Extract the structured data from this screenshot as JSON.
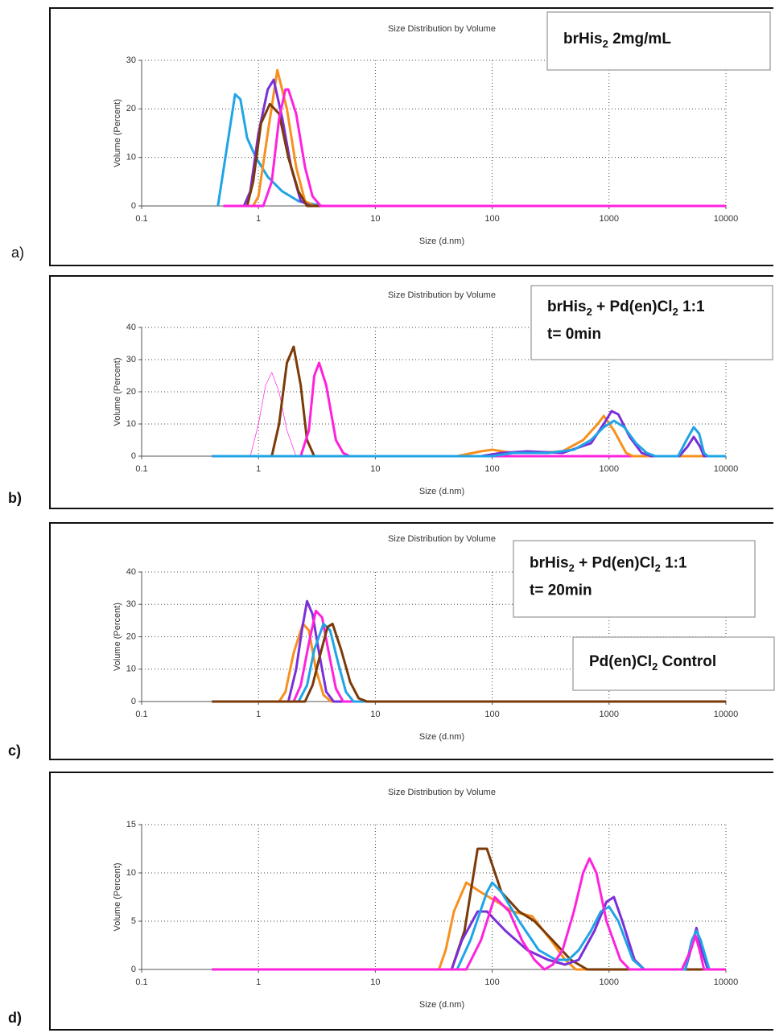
{
  "chart_data": [
    {
      "type": "line",
      "title": "Size Distribution by Volume",
      "x_label": "Size (d.nm)",
      "y_label": "Volume (Percent)",
      "panel_label": "a)",
      "annotation": [
        [
          "brHis",
          "2",
          " 2mg/mL"
        ]
      ],
      "xscale": "log",
      "xlim": [
        0.1,
        10000
      ],
      "xticks": [
        0.1,
        1,
        10,
        100,
        1000,
        10000
      ],
      "ylim": [
        0,
        30
      ],
      "yticks": [
        0,
        10,
        20,
        30
      ],
      "grid": true,
      "series": [
        {
          "color": "#1fa4e6",
          "x": [
            0.45,
            0.63,
            0.7,
            0.8,
            0.95,
            1.2,
            1.6,
            2.2,
            3.5,
            10000
          ],
          "values": [
            0,
            23,
            22,
            14,
            10,
            6,
            3,
            1,
            0,
            0
          ]
        },
        {
          "color": "#f7901e",
          "x": [
            0.5,
            0.9,
            1.0,
            1.2,
            1.45,
            1.75,
            2.1,
            2.5,
            3,
            10000
          ],
          "values": [
            0,
            0,
            2,
            15,
            28,
            20,
            8,
            1,
            0,
            0
          ]
        },
        {
          "color": "#7a2fd8",
          "x": [
            0.5,
            0.75,
            0.85,
            1.0,
            1.2,
            1.35,
            1.6,
            1.9,
            2.3,
            2.8,
            10000
          ],
          "values": [
            0,
            0,
            3,
            15,
            24,
            26,
            18,
            8,
            1,
            0,
            0
          ]
        },
        {
          "color": "#7b3a08",
          "x": [
            0.5,
            0.8,
            0.9,
            1.05,
            1.25,
            1.5,
            1.8,
            2.2,
            2.6,
            10000
          ],
          "values": [
            0,
            0,
            5,
            17,
            21,
            19,
            10,
            3,
            0,
            0
          ]
        },
        {
          "color": "#ff22dd",
          "x": [
            0.5,
            1.1,
            1.3,
            1.5,
            1.7,
            1.8,
            2.1,
            2.5,
            2.9,
            3.4,
            10000
          ],
          "values": [
            0,
            0,
            5,
            18,
            24,
            24,
            19,
            8,
            2,
            0,
            0
          ]
        }
      ]
    },
    {
      "type": "line",
      "title": "Size Distribution by Volume",
      "x_label": "Size (d.nm)",
      "y_label": "Volume (Percent)",
      "panel_label": "b)",
      "annotation": [
        [
          "brHis",
          "2",
          " + Pd(en)Cl",
          "2",
          "  1:1"
        ],
        [
          "t= 0min"
        ]
      ],
      "xscale": "log",
      "xlim": [
        0.1,
        10000
      ],
      "xticks": [
        0.1,
        1,
        10,
        100,
        1000,
        10000
      ],
      "ylim": [
        0,
        40
      ],
      "yticks": [
        0,
        10,
        20,
        30,
        40
      ],
      "grid": true,
      "series": [
        {
          "color": "#ff22dd",
          "width": 0.7,
          "x": [
            0.5,
            0.85,
            1.0,
            1.15,
            1.3,
            1.5,
            1.75,
            2.1,
            10000
          ],
          "values": [
            0,
            0,
            10,
            22,
            26,
            20,
            8,
            0,
            0
          ]
        },
        {
          "color": "#7b3a08",
          "x": [
            0.4,
            1.3,
            1.5,
            1.75,
            2.0,
            2.3,
            2.6,
            3.0,
            10000
          ],
          "values": [
            0,
            0,
            10,
            29,
            34,
            22,
            5,
            0,
            0
          ]
        },
        {
          "color": "#ff22dd",
          "x": [
            0.4,
            2.3,
            2.7,
            3.0,
            3.3,
            3.8,
            4.6,
            5.3,
            6,
            10000
          ],
          "values": [
            0,
            0,
            8,
            25,
            29,
            22,
            5,
            1,
            0,
            0
          ]
        },
        {
          "color": "#f7901e",
          "x": [
            0.4,
            50,
            80,
            100,
            150,
            250,
            400,
            600,
            800,
            900,
            1100,
            1400,
            1600,
            10000
          ],
          "values": [
            0,
            0,
            1.5,
            2,
            1,
            1,
            1.5,
            5,
            10,
            12.5,
            8,
            1,
            0,
            0
          ]
        },
        {
          "color": "#7a2fd8",
          "x": [
            0.4,
            80,
            120,
            200,
            400,
            700,
            900,
            1050,
            1200,
            1500,
            1900,
            2300,
            4000,
            4700,
            5300,
            6000,
            6500,
            10000
          ],
          "values": [
            0,
            0,
            1,
            1.5,
            1,
            4,
            10,
            14,
            13,
            6,
            1,
            0,
            0,
            3,
            6,
            3,
            0,
            0
          ]
        },
        {
          "color": "#1fa4e6",
          "x": [
            0.4,
            100,
            150,
            300,
            500,
            700,
            900,
            1100,
            1350,
            1700,
            2100,
            2500,
            3900,
            4600,
            5300,
            5900,
            6500,
            7000,
            10000
          ],
          "values": [
            0,
            0,
            1,
            1,
            2,
            5,
            9,
            11,
            9,
            4,
            1,
            0,
            0,
            5,
            9,
            7,
            1,
            0,
            0
          ]
        }
      ]
    },
    {
      "type": "line",
      "title": "Size Distribution by Volume",
      "x_label": "Size (d.nm)",
      "y_label": "Volume (Percent)",
      "panel_label": "c)",
      "annotation": [
        [
          "brHis",
          "2",
          " + Pd(en)Cl",
          "2",
          "    1:1"
        ],
        [
          "t= 20min"
        ]
      ],
      "xscale": "log",
      "xlim": [
        0.1,
        10000
      ],
      "xticks": [
        0.1,
        1,
        10,
        100,
        1000,
        10000
      ],
      "ylim": [
        0,
        40
      ],
      "yticks": [
        0,
        10,
        20,
        30,
        40
      ],
      "grid": true,
      "series": [
        {
          "color": "#f7901e",
          "x": [
            0.4,
            1.5,
            1.7,
            2.0,
            2.4,
            2.7,
            3.1,
            3.6,
            4.2,
            10000
          ],
          "values": [
            0,
            0,
            3,
            15,
            24,
            22,
            10,
            2,
            0,
            0
          ]
        },
        {
          "color": "#7a2fd8",
          "x": [
            0.4,
            1.8,
            2.1,
            2.35,
            2.6,
            2.9,
            3.3,
            3.8,
            4.4,
            10000
          ],
          "values": [
            0,
            0,
            10,
            22,
            31,
            27,
            15,
            3,
            0,
            0
          ]
        },
        {
          "color": "#ff22dd",
          "x": [
            0.4,
            2.0,
            2.3,
            2.7,
            3.1,
            3.5,
            4.0,
            4.6,
            5.3,
            10000
          ],
          "values": [
            0,
            0,
            5,
            18,
            28,
            26,
            15,
            4,
            0,
            0
          ]
        },
        {
          "color": "#1fa4e6",
          "x": [
            0.4,
            2.2,
            2.6,
            3.0,
            3.6,
            4.1,
            4.8,
            5.6,
            6.5,
            10000
          ],
          "values": [
            0,
            0,
            5,
            16,
            24,
            22,
            12,
            3,
            0,
            0
          ]
        },
        {
          "color": "#7b3a08",
          "x": [
            0.4,
            2.5,
            2.9,
            3.4,
            3.9,
            4.3,
            5.1,
            6.1,
            7.2,
            8.5,
            10000
          ],
          "values": [
            0,
            0,
            5,
            15,
            23,
            24,
            16,
            6,
            1,
            0,
            0
          ]
        }
      ]
    },
    {
      "type": "line",
      "title": "Size Distribution by Volume",
      "x_label": "Size (d.nm)",
      "y_label": "Volume (Percent)",
      "panel_label": "d)",
      "annotation": [
        [
          "Pd(en)Cl",
          "2",
          " Control"
        ]
      ],
      "xscale": "log",
      "xlim": [
        0.1,
        10000
      ],
      "xticks": [
        0.1,
        1,
        10,
        100,
        1000,
        10000
      ],
      "ylim": [
        0,
        15
      ],
      "yticks": [
        0,
        5,
        10,
        15
      ],
      "grid": true,
      "series": [
        {
          "color": "#f7901e",
          "x": [
            0.4,
            35,
            40,
            47,
            60,
            80,
            110,
            150,
            220,
            320,
            420,
            520,
            10000
          ],
          "values": [
            0,
            0,
            2,
            6,
            9,
            8,
            7,
            6,
            5.5,
            3,
            1,
            0,
            0
          ]
        },
        {
          "color": "#7b3a08",
          "x": [
            0.4,
            45,
            58,
            75,
            90,
            120,
            170,
            230,
            330,
            470,
            650,
            10000
          ],
          "values": [
            0,
            0,
            4,
            12.5,
            12.5,
            8,
            6,
            5,
            3,
            1,
            0,
            0
          ]
        },
        {
          "color": "#7a2fd8",
          "x": [
            0.4,
            45,
            55,
            75,
            90,
            130,
            200,
            300,
            420,
            550,
            750,
            950,
            1100,
            1300,
            1650,
            2000,
            4500,
            5000,
            5600,
            6200,
            7000,
            10000
          ],
          "values": [
            0,
            0,
            3,
            6,
            6,
            4,
            2,
            1,
            0.5,
            1,
            4,
            7,
            7.5,
            5,
            1,
            0,
            0,
            2,
            4.3,
            2,
            0,
            0
          ]
        },
        {
          "color": "#1fa4e6",
          "x": [
            0.4,
            50,
            65,
            90,
            100,
            120,
            170,
            250,
            350,
            450,
            550,
            700,
            850,
            1000,
            1200,
            1600,
            2000,
            4500,
            5100,
            5600,
            6100,
            7200,
            10000
          ],
          "values": [
            0,
            0,
            3,
            8,
            9,
            8,
            5,
            2,
            1,
            1,
            2,
            4,
            6,
            6.5,
            5,
            1,
            0,
            0,
            3,
            4,
            3,
            0,
            0
          ]
        },
        {
          "color": "#ff22dd",
          "x": [
            0.4,
            60,
            80,
            105,
            140,
            180,
            230,
            280,
            330,
            400,
            500,
            600,
            680,
            780,
            950,
            1250,
            1500,
            4200,
            5000,
            5500,
            6100,
            6500,
            10000
          ],
          "values": [
            0,
            0,
            3,
            7.5,
            6,
            3,
            1,
            0,
            0.5,
            2,
            6,
            10,
            11.5,
            10,
            5,
            1,
            0,
            0,
            2,
            3.5,
            1.5,
            0,
            0
          ]
        }
      ]
    }
  ]
}
